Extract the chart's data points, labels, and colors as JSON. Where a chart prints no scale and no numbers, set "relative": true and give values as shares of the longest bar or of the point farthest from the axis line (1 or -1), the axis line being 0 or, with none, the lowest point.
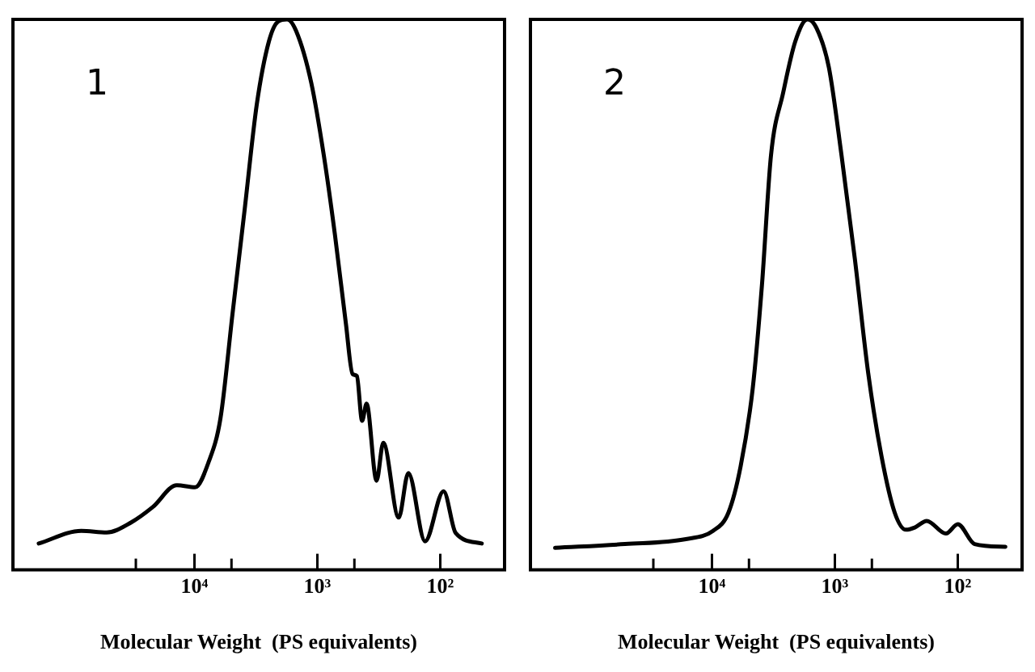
{
  "chart_data": [
    {
      "type": "line",
      "relative": true,
      "log": "x",
      "grid": false,
      "marker": "none",
      "line_style": "solid",
      "legend": false,
      "xlabel": "Molecular Weight  (PS equivalents)",
      "annotations": [
        "1"
      ],
      "xlim": [
        300000,
        30
      ],
      "xticks": [
        {
          "value": 30000,
          "label": null
        },
        {
          "value": 10000,
          "label": "10⁴"
        },
        {
          "value": 5000,
          "label": null
        },
        {
          "value": 1000,
          "label": "10³"
        },
        {
          "value": 500,
          "label": null
        },
        {
          "value": 100,
          "label": "10²"
        }
      ],
      "series": [
        {
          "color": "#000000",
          "x": [
            185000,
            83400,
            51800,
            32900,
            21900,
            13900,
            9900,
            7700,
            6140,
            4900,
            3900,
            3110,
            2480,
            2090,
            1760,
            1490,
            1120,
            884,
            720,
            586,
            518,
            477,
            433,
            398,
            330,
            291,
            218,
            182,
            133,
            94,
            75,
            46
          ],
          "values": [
            0.048,
            0.071,
            0.068,
            0.086,
            0.114,
            0.154,
            0.15,
            0.195,
            0.276,
            0.466,
            0.656,
            0.846,
            0.96,
            0.996,
            1.0,
            0.979,
            0.884,
            0.751,
            0.609,
            0.447,
            0.356,
            0.352,
            0.271,
            0.302,
            0.162,
            0.231,
            0.095,
            0.176,
            0.052,
            0.143,
            0.067,
            0.048
          ]
        }
      ]
    },
    {
      "type": "line",
      "relative": true,
      "log": "x",
      "grid": false,
      "marker": "none",
      "line_style": "solid",
      "legend": false,
      "xlabel": "Molecular Weight  (PS equivalents)",
      "annotations": [
        "2"
      ],
      "xlim": [
        300000,
        30
      ],
      "xticks": [
        {
          "value": 30000,
          "label": null
        },
        {
          "value": 10000,
          "label": "10⁴"
        },
        {
          "value": 5000,
          "label": null
        },
        {
          "value": 1000,
          "label": "10³"
        },
        {
          "value": 500,
          "label": null
        },
        {
          "value": 100,
          "label": "10²"
        }
      ],
      "series": [
        {
          "color": "#000000",
          "x": [
            189000,
            51000,
            16300,
            9800,
            7350,
            5850,
            4660,
            3920,
            3310,
            2640,
            2100,
            1670,
            1410,
            1120,
            883,
            688,
            536,
            418,
            326,
            264,
            224,
            179,
            125,
            100,
            73,
            41
          ],
          "values": [
            0.04,
            0.047,
            0.056,
            0.071,
            0.104,
            0.188,
            0.33,
            0.518,
            0.753,
            0.866,
            0.96,
            1.0,
            0.984,
            0.913,
            0.753,
            0.565,
            0.358,
            0.207,
            0.104,
            0.073,
            0.077,
            0.089,
            0.066,
            0.083,
            0.047,
            0.042
          ]
        }
      ]
    }
  ]
}
